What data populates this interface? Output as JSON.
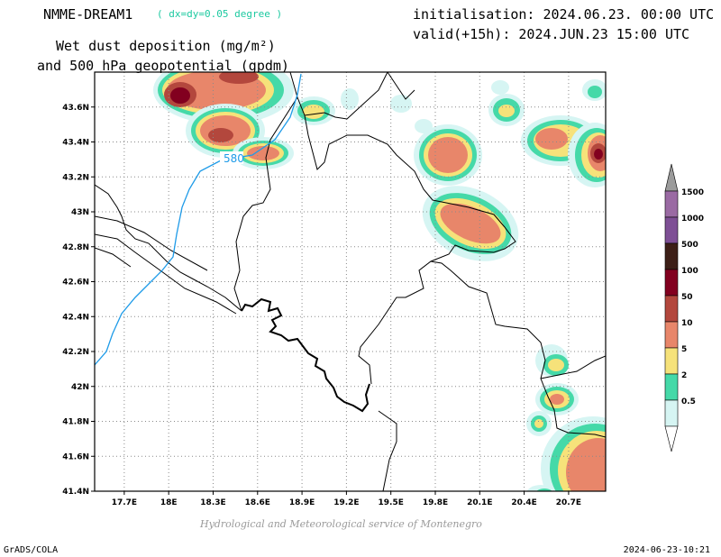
{
  "header": {
    "model": "NMME-DREAM1",
    "resolution": "( dx=dy=0.05 degree )",
    "product_line1": "Wet dust deposition (mg/m²)",
    "product_line2": "and 500 hPa geopotential (gpdm)",
    "initialisation": "initialisation: 2024.06.23. 00:00 UTC",
    "valid": "valid(+15h): 2024.JUN.23 15:00 UTC"
  },
  "map": {
    "lon_ticks": [
      "17.7E",
      "18E",
      "18.3E",
      "18.6E",
      "18.9E",
      "19.2E",
      "19.5E",
      "19.8E",
      "20.1E",
      "20.4E",
      "20.7E"
    ],
    "lat_ticks": [
      "43.6N",
      "43.4N",
      "43.2N",
      "43N",
      "42.8N",
      "42.6N",
      "42.4N",
      "42.2N",
      "42N",
      "41.8N",
      "41.6N",
      "41.4N"
    ],
    "lon_range": [
      17.5,
      20.95
    ],
    "lat_range": [
      41.4,
      43.8
    ],
    "contour": {
      "label": "580",
      "color": "#1e9be8"
    }
  },
  "legend": {
    "levels": [
      "1500",
      "1000",
      "500",
      "100",
      "50",
      "10",
      "5",
      "2",
      "0.5"
    ],
    "colors": [
      "#9a6aa3",
      "#7e4f95",
      "#3d1f17",
      "#82001f",
      "#b3473d",
      "#e8866a",
      "#f6e27a",
      "#45d9a8",
      "#d6f5f3"
    ],
    "over_color": "#9b9b9b"
  },
  "footer": {
    "credit": "Hydrological and Meteorological service of Montenegro",
    "software": "GrADS/COLA",
    "timestamp": "2024-06-23-10:21"
  }
}
